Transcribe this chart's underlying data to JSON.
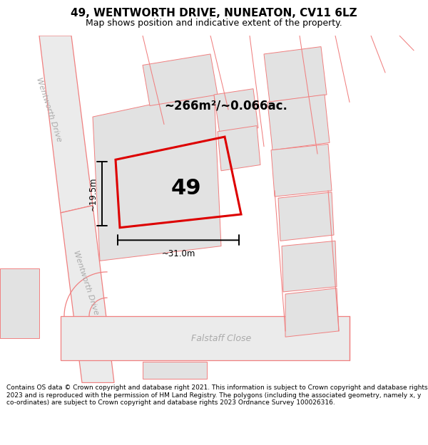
{
  "title": "49, WENTWORTH DRIVE, NUNEATON, CV11 6LZ",
  "subtitle": "Map shows position and indicative extent of the property.",
  "footer": "Contains OS data © Crown copyright and database right 2021. This information is subject to Crown copyright and database rights 2023 and is reproduced with the permission of HM Land Registry. The polygons (including the associated geometry, namely x, y co-ordinates) are subject to Crown copyright and database rights 2023 Ordnance Survey 100026316.",
  "area_label": "~266m²/~0.066ac.",
  "number_label": "49",
  "dim_width": "~31.0m",
  "dim_height": "~19.5m",
  "street_label_upper": "Wentworth Drive",
  "street_label_lower": "Wentworth Drive",
  "street_label_bottom": "Falstaff Close",
  "map_bg": "#ffffff",
  "building_fill": "#e2e2e2",
  "plot_edge_color": "#dd0000",
  "road_line_color": "#f08080",
  "dim_color": "#000000",
  "title_fontsize": 11,
  "subtitle_fontsize": 9,
  "footer_fontsize": 6.5
}
